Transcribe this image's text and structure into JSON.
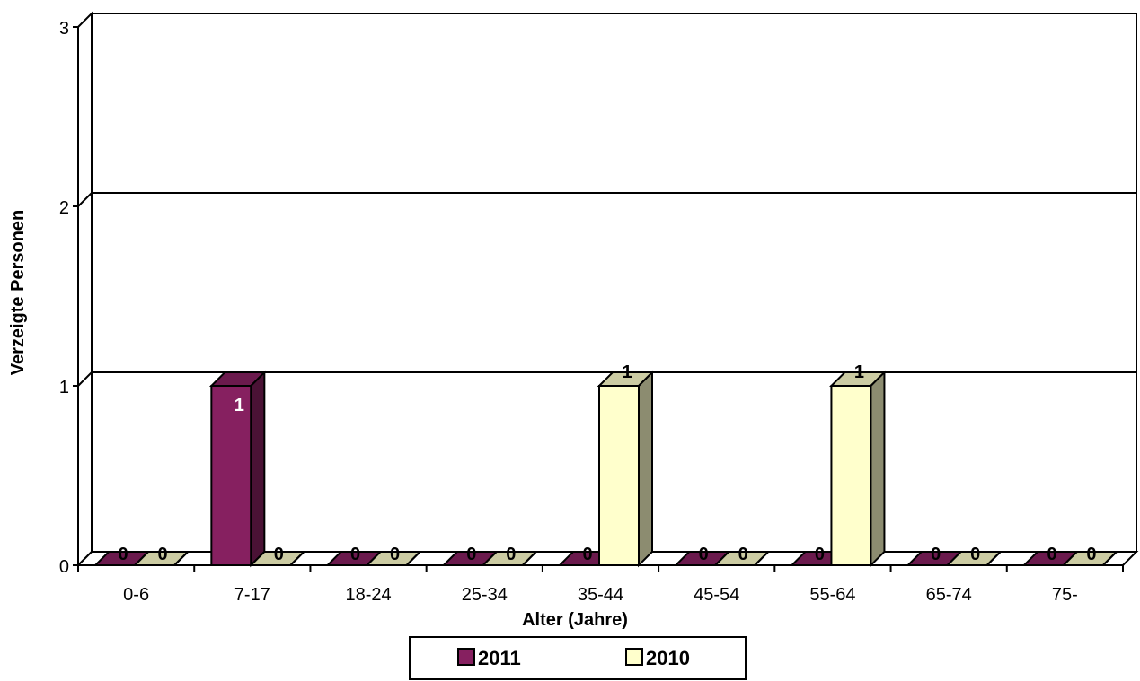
{
  "chart_data": {
    "type": "bar",
    "style": "3d-clustered",
    "categories": [
      "0-6",
      "7-17",
      "18-24",
      "25-34",
      "35-44",
      "45-54",
      "55-64",
      "65-74",
      "75-"
    ],
    "series": [
      {
        "name": "2011",
        "values": [
          0,
          1,
          0,
          0,
          0,
          0,
          0,
          0,
          0
        ],
        "color": "#862060"
      },
      {
        "name": "2010",
        "values": [
          0,
          0,
          0,
          0,
          1,
          0,
          1,
          0,
          0
        ],
        "color": "#FFFFCC"
      }
    ],
    "xlabel": "Alter (Jahre)",
    "ylabel": "Verzeigte Personen",
    "ylim": [
      0,
      3
    ],
    "yticks": [
      0,
      1,
      2,
      3
    ],
    "grid": true,
    "legend_position": "bottom-center",
    "data_labels": true
  }
}
